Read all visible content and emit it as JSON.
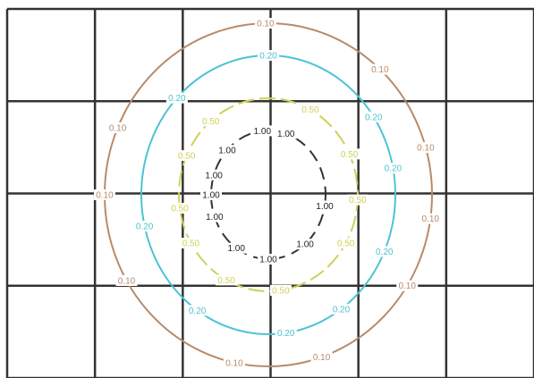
{
  "chart_data": {
    "type": "contour",
    "x": [
      0,
      1,
      2,
      3,
      4,
      5,
      6
    ],
    "y": [
      0,
      1,
      2,
      3,
      4
    ],
    "grid": true,
    "levels": [
      {
        "value": 0.1,
        "color": "#b88a6a",
        "labels": [
          {
            "text": "0.10",
            "angle": 180
          },
          {
            "text": "0.10",
            "angle": 157
          },
          {
            "text": "0.10",
            "angle": 210
          },
          {
            "text": "0.10",
            "angle": 258
          },
          {
            "text": "0.10",
            "angle": 289
          },
          {
            "text": "0.10",
            "angle": 328
          },
          {
            "text": "0.10",
            "angle": 352
          },
          {
            "text": "0.10",
            "angle": 16
          },
          {
            "text": "0.10",
            "angle": 47
          },
          {
            "text": "0.10",
            "angle": 91
          }
        ]
      },
      {
        "value": 0.2,
        "color": "#4cc3d3",
        "labels": [
          {
            "text": "0.20",
            "angle": 90
          },
          {
            "text": "0.20",
            "angle": 136
          },
          {
            "text": "0.20",
            "angle": 193
          },
          {
            "text": "0.20",
            "angle": 236
          },
          {
            "text": "0.20",
            "angle": 278
          },
          {
            "text": "0.20",
            "angle": 305
          },
          {
            "text": "0.20",
            "angle": 336
          },
          {
            "text": "0.20",
            "angle": 11
          },
          {
            "text": "0.20",
            "angle": 34
          }
        ]
      },
      {
        "value": 0.5,
        "color": "#cdd159",
        "labels": [
          {
            "text": "0.50",
            "angle": 130
          },
          {
            "text": "0.50",
            "angle": 156
          },
          {
            "text": "0.50",
            "angle": 188
          },
          {
            "text": "0.50",
            "angle": 210
          },
          {
            "text": "0.50",
            "angle": 242
          },
          {
            "text": "0.50",
            "angle": 278
          },
          {
            "text": "0.50",
            "angle": 330
          },
          {
            "text": "0.50",
            "angle": 357
          },
          {
            "text": "0.50",
            "angle": 25
          },
          {
            "text": "0.50",
            "angle": 62
          }
        ]
      },
      {
        "value": 1.0,
        "color": "#333333",
        "labels": [
          {
            "text": "1.00",
            "angle": 96
          },
          {
            "text": "1.00",
            "angle": 136
          },
          {
            "text": "1.00",
            "angle": 162
          },
          {
            "text": "1.00",
            "angle": 180
          },
          {
            "text": "1.00",
            "angle": 200
          },
          {
            "text": "1.00",
            "angle": 236
          },
          {
            "text": "1.00",
            "angle": 270
          },
          {
            "text": "1.00",
            "angle": 310
          },
          {
            "text": "1.00",
            "angle": 350
          },
          {
            "text": "1.00",
            "angle": 72
          }
        ]
      }
    ]
  }
}
